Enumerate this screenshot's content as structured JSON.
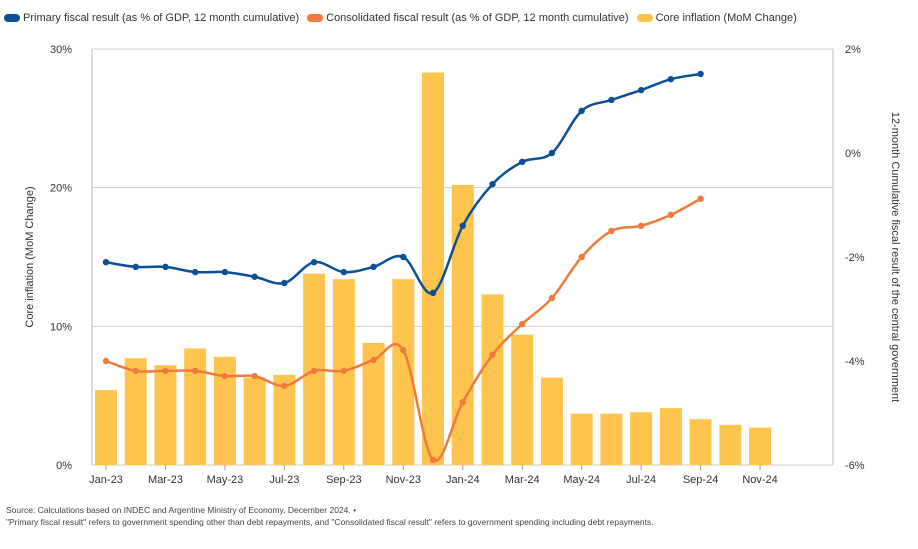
{
  "legend": [
    {
      "label": "Primary fiscal result (as % of GDP, 12 month cumulative)",
      "color": "#0a4f97"
    },
    {
      "label": "Consolidated fiscal result (as % of GDP, 12 month cumulative)",
      "color": "#f07a3c"
    },
    {
      "label": "Core inflation (MoM Change)",
      "color": "#fdc54e"
    }
  ],
  "footer": {
    "source": "Source: Calculations based on INDEC and Argentine Ministry of Economy, December 2024. •",
    "note": "\"Primary fiscal result\" refers to government spending other than debt repayments, and \"Consolidated fiscal result\" refers to government spending including debt repayments."
  },
  "chart_data": {
    "type": "bar+line",
    "period": "Jan-23 to Nov-24 (monthly)",
    "x_tick_labels": [
      "Jan-23",
      "Mar-23",
      "May-23",
      "Jul-23",
      "Sep-23",
      "Nov-23",
      "Jan-24",
      "Mar-24",
      "May-24",
      "Jul-24",
      "Sep-24",
      "Nov-24"
    ],
    "ylabel_left": "Core inflation (MoM Change)",
    "ylabel_right": "12-month Cumulative fiscal result of the central government",
    "ylim_left": [
      0,
      30
    ],
    "yticks_left": [
      "0%",
      "10%",
      "20%",
      "30%"
    ],
    "ylim_right": [
      -6,
      2
    ],
    "yticks_right": [
      "-6%",
      "-4%",
      "-2%",
      "0%",
      "2%"
    ],
    "grid": true,
    "series": [
      {
        "name": "Core inflation (MoM Change)",
        "type": "bar",
        "axis": "left",
        "color": "#fdc54e",
        "values": [
          5.4,
          7.7,
          7.2,
          8.4,
          7.8,
          6.3,
          6.5,
          13.8,
          13.4,
          8.8,
          13.4,
          28.3,
          20.2,
          12.3,
          9.4,
          6.3,
          3.7,
          3.7,
          3.8,
          4.1,
          3.3,
          2.9,
          2.7
        ]
      },
      {
        "name": "Primary fiscal result",
        "type": "line",
        "axis": "right",
        "color": "#0a4f97",
        "values": [
          -2.1,
          -2.19,
          -2.19,
          -2.29,
          -2.29,
          -2.38,
          -2.5,
          -2.1,
          -2.29,
          -2.19,
          -2.0,
          -2.69,
          -1.4,
          -0.6,
          -0.17,
          0.0,
          0.81,
          1.02,
          1.21,
          1.42,
          1.52
        ]
      },
      {
        "name": "Consolidated fiscal result",
        "type": "line",
        "axis": "right",
        "color": "#f07a3c",
        "values": [
          -4.0,
          -4.19,
          -4.19,
          -4.19,
          -4.29,
          -4.29,
          -4.48,
          -4.19,
          -4.19,
          -3.98,
          -3.79,
          -5.9,
          -4.79,
          -3.88,
          -3.29,
          -2.79,
          -2.0,
          -1.5,
          -1.4,
          -1.19,
          -0.88
        ]
      }
    ]
  }
}
